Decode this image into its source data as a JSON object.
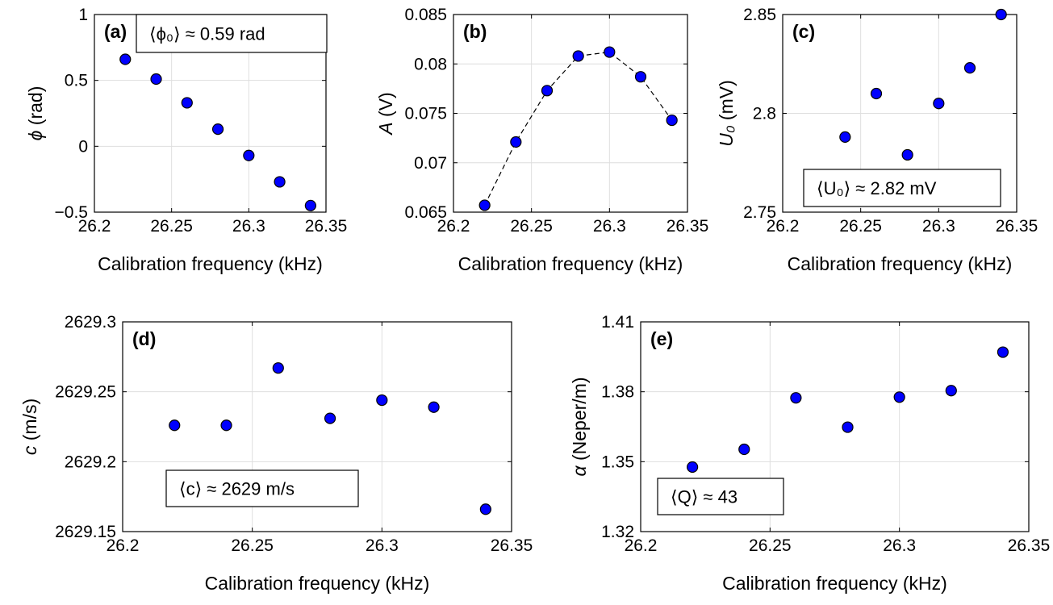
{
  "colors": {
    "marker_fill": "#0000ff",
    "marker_edge": "#000000",
    "grid": "#dedede",
    "axis": "#000000",
    "dashed_line": "#000000"
  },
  "chart_data": [
    {
      "type": "scatter",
      "panel_label": "(a)",
      "xlabel": "Calibration frequency (kHz)",
      "ylabel_symbol": "ϕ",
      "ylabel_unit": " (rad)",
      "x_ticks": [
        "26.2",
        "26.25",
        "26.3",
        "26.35"
      ],
      "y_ticks": [
        "−0.5",
        "0",
        "0.5",
        "1"
      ],
      "xlim": [
        26.2,
        26.35
      ],
      "ylim": [
        -0.5,
        1
      ],
      "grid": true,
      "x": [
        26.22,
        26.24,
        26.26,
        26.28,
        26.3,
        26.32,
        26.34
      ],
      "y": [
        0.66,
        0.51,
        0.33,
        0.13,
        -0.07,
        -0.27,
        -0.45
      ],
      "connect": false,
      "annotation": "⟨ϕ₀⟩ ≈ 0.59 rad",
      "annotation_placement": "top-left"
    },
    {
      "type": "line",
      "panel_label": "(b)",
      "xlabel": "Calibration frequency (kHz)",
      "ylabel_symbol": "A",
      "ylabel_unit": " (V)",
      "x_ticks": [
        "26.2",
        "26.25",
        "26.3",
        "26.35"
      ],
      "y_ticks": [
        "0.065",
        "0.07",
        "0.075",
        "0.08",
        "0.085"
      ],
      "xlim": [
        26.2,
        26.35
      ],
      "ylim": [
        0.065,
        0.085
      ],
      "grid": true,
      "x": [
        26.22,
        26.24,
        26.26,
        26.28,
        26.3,
        26.32,
        26.34
      ],
      "y": [
        0.0657,
        0.0721,
        0.0773,
        0.0808,
        0.0812,
        0.0787,
        0.0743
      ],
      "connect": true,
      "annotation": ""
    },
    {
      "type": "scatter",
      "panel_label": "(c)",
      "xlabel": "Calibration frequency (kHz)",
      "ylabel_symbol": "U₀",
      "ylabel_unit": " (mV)",
      "x_ticks": [
        "26.2",
        "26.25",
        "26.3",
        "26.35"
      ],
      "y_ticks": [
        "2.75",
        "2.8",
        "2.85"
      ],
      "xlim": [
        26.2,
        26.35
      ],
      "ylim": [
        2.75,
        2.85
      ],
      "grid": true,
      "x": [
        26.24,
        26.26,
        26.28,
        26.3,
        26.32,
        26.34
      ],
      "y": [
        2.788,
        2.81,
        2.779,
        2.805,
        2.823,
        2.85
      ],
      "connect": false,
      "annotation": "⟨U₀⟩ ≈ 2.82 mV",
      "annotation_placement": "bottom-left"
    },
    {
      "type": "scatter",
      "panel_label": "(d)",
      "xlabel": "Calibration frequency (kHz)",
      "ylabel_symbol": "c",
      "ylabel_unit": " (m/s)",
      "x_ticks": [
        "26.2",
        "26.25",
        "26.3",
        "26.35"
      ],
      "y_ticks": [
        "2629.15",
        "2629.2",
        "2629.25",
        "2629.3"
      ],
      "xlim": [
        26.2,
        26.35
      ],
      "ylim": [
        2629.15,
        2629.3
      ],
      "grid": true,
      "x": [
        26.22,
        26.24,
        26.26,
        26.28,
        26.3,
        26.32,
        26.34
      ],
      "y": [
        2629.226,
        2629.226,
        2629.267,
        2629.231,
        2629.244,
        2629.239,
        2629.166
      ],
      "connect": false,
      "annotation": "⟨c⟩ ≈ 2629 m/s",
      "annotation_placement": "bottom-left"
    },
    {
      "type": "scatter",
      "panel_label": "(e)",
      "xlabel": "Calibration frequency (kHz)",
      "ylabel_symbol": "α",
      "ylabel_unit": " (Neper/m)",
      "x_ticks": [
        "26.2",
        "26.25",
        "26.3",
        "26.35"
      ],
      "y_ticks": [
        "1.32",
        "1.35",
        "1.38",
        "1.41"
      ],
      "xlim": [
        26.2,
        26.35
      ],
      "ylim": [
        1.32,
        1.41
      ],
      "grid": true,
      "x": [
        26.22,
        26.24,
        26.26,
        26.28,
        26.3,
        26.32,
        26.34
      ],
      "y": [
        1.3477,
        1.3553,
        1.3774,
        1.3648,
        1.3777,
        1.3805,
        1.397
      ],
      "connect": false,
      "annotation": "⟨Q⟩ ≈ 43",
      "annotation_placement": "bottom-left"
    }
  ]
}
